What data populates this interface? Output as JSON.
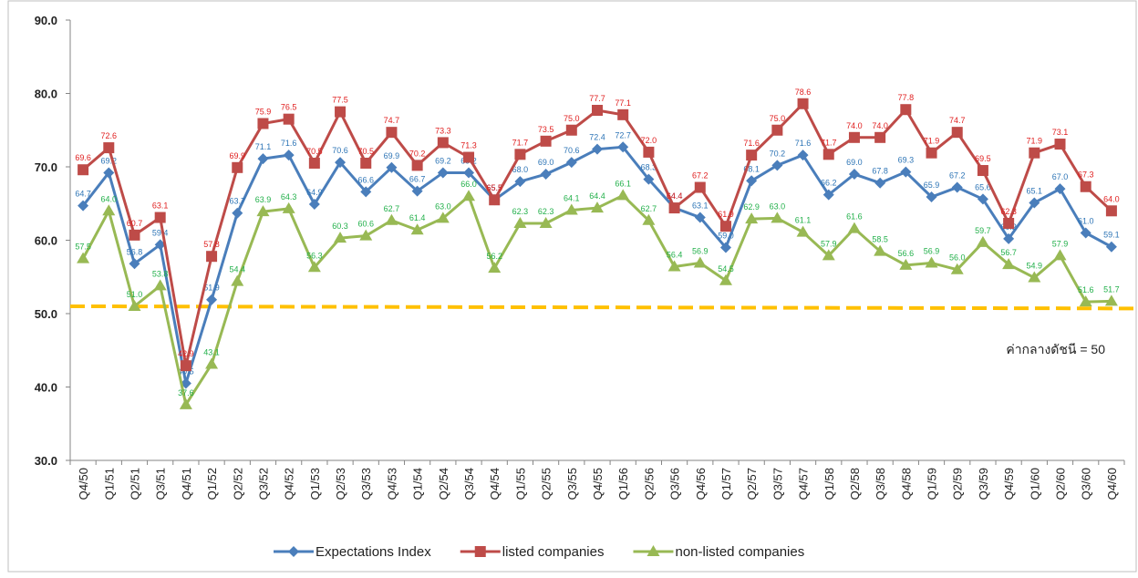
{
  "chart_data": {
    "type": "line",
    "categories": [
      "Q4/50",
      "Q1/51",
      "Q2/51",
      "Q3/51",
      "Q4/51",
      "Q1/52",
      "Q2/52",
      "Q3/52",
      "Q4/52",
      "Q1/53",
      "Q2/53",
      "Q3/53",
      "Q4/53",
      "Q1/54",
      "Q2/54",
      "Q3/54",
      "Q4/54",
      "Q1/55",
      "Q2/55",
      "Q3/55",
      "Q4/55",
      "Q1/56",
      "Q2/56",
      "Q3/56",
      "Q4/56",
      "Q1/57",
      "Q2/57",
      "Q3/57",
      "Q4/57",
      "Q1/58",
      "Q2/58",
      "Q3/58",
      "Q4/58",
      "Q1/59",
      "Q2/59",
      "Q3/59",
      "Q4/59",
      "Q1/60",
      "Q2/60",
      "Q3/60",
      "Q4/60"
    ],
    "series": [
      {
        "name": "Expectations Index",
        "color": "#4a7ebb",
        "label_color": "#2e75b6",
        "marker": "diamond",
        "values": [
          64.7,
          69.2,
          56.8,
          59.4,
          40.5,
          51.9,
          63.7,
          71.1,
          71.6,
          64.9,
          70.6,
          66.6,
          69.9,
          66.7,
          69.2,
          69.2,
          65.5,
          68.0,
          69.0,
          70.6,
          72.4,
          72.7,
          68.3,
          64.4,
          63.1,
          59.0,
          68.1,
          70.2,
          71.6,
          66.2,
          69.0,
          67.8,
          69.3,
          65.9,
          67.2,
          65.6,
          60.2,
          65.1,
          67.0,
          61.0,
          59.1
        ],
        "value_labels": [
          "64.7",
          "69.2",
          "56.8",
          "59.4",
          "40.5",
          "51.9",
          "63.7",
          "71.1",
          "71.6",
          "64.9",
          "70.6",
          "66.6",
          "69.9",
          "66.7",
          "69.2",
          "69.2",
          "65.5",
          "68.0",
          "69.0",
          "70.6",
          "72.4",
          "72.7",
          "68.3",
          "64.4",
          "63.1",
          "59.0",
          "68.1",
          "70.2",
          "71.6",
          "66.2",
          "69.0",
          "67.8",
          "69.3",
          "65.9",
          "67.2",
          "65.6",
          "60.2",
          "65.1",
          "67.0",
          "61.0",
          "59.1"
        ]
      },
      {
        "name": "listed companies",
        "color": "#be4b48",
        "label_color": "#e02020",
        "marker": "square",
        "values": [
          69.6,
          72.6,
          60.7,
          63.1,
          42.9,
          57.8,
          69.9,
          75.9,
          76.5,
          70.5,
          77.5,
          70.5,
          74.7,
          70.2,
          73.3,
          71.3,
          65.5,
          71.7,
          73.5,
          75.0,
          77.7,
          77.1,
          72.0,
          64.4,
          67.2,
          61.9,
          71.6,
          75.0,
          78.6,
          71.7,
          74.0,
          74.0,
          77.8,
          71.9,
          74.7,
          69.5,
          62.3,
          71.9,
          73.1,
          67.3,
          64.0
        ],
        "value_labels": [
          "69.6",
          "72.6",
          "60.7",
          "63.1",
          "42.9",
          "57.8",
          "69.9",
          "75.9",
          "76.5",
          "70.5",
          "77.5",
          "70.5",
          "74.7",
          "70.2",
          "73.3",
          "71.3",
          "65.5",
          "71.7",
          "73.5",
          "75.0",
          "77.7",
          "77.1",
          "72.0",
          "64.4",
          "67.2",
          "61.9",
          "71.6",
          "75.0",
          "78.6",
          "71.7",
          "74.0",
          "74.0",
          "77.8",
          "71.9",
          "74.7",
          "69.5",
          "62.3",
          "71.9",
          "73.1",
          "67.3",
          "64.0"
        ]
      },
      {
        "name": "non-listed companies",
        "color": "#98b954",
        "label_color": "#22b04a",
        "marker": "triangle",
        "values": [
          57.5,
          64.0,
          51.0,
          53.8,
          37.6,
          43.1,
          54.4,
          63.9,
          64.3,
          56.3,
          60.3,
          60.6,
          62.7,
          61.4,
          63.0,
          66.0,
          56.2,
          62.3,
          62.3,
          64.1,
          64.4,
          66.1,
          62.7,
          56.4,
          56.9,
          54.5,
          62.9,
          63.0,
          61.1,
          57.9,
          61.6,
          58.5,
          56.6,
          56.9,
          56.0,
          59.7,
          56.7,
          54.9,
          57.9,
          51.6,
          51.7
        ],
        "value_labels": [
          "57.5",
          "64.0",
          "51.0",
          "53.8",
          "37.6",
          "43.1",
          "54.4",
          "63.9",
          "64.3",
          "56.3",
          "60.3",
          "60.6",
          "62.7",
          "61.4",
          "63.0",
          "66.0",
          "56.2",
          "62.3",
          "62.3",
          "64.1",
          "64.4",
          "66.1",
          "62.7",
          "56.4",
          "56.9",
          "54.5",
          "62.9",
          "63.0",
          "61.1",
          "57.9",
          "61.6",
          "58.5",
          "56.6",
          "56.9",
          "56.0",
          "59.7",
          "56.7",
          "54.9",
          "57.9",
          "51.6",
          "51.7"
        ]
      }
    ],
    "reference_line": {
      "values": [
        51.0,
        50.7
      ],
      "color": "#ffc000",
      "label": "ค่ากลางดัชนี = 50"
    },
    "ylim": [
      30,
      90
    ],
    "yticks": [
      {
        "value": 30,
        "label": "30.0"
      },
      {
        "value": 40,
        "label": "40.0"
      },
      {
        "value": 50,
        "label": "50.0"
      },
      {
        "value": 60,
        "label": "60.0"
      },
      {
        "value": 70,
        "label": "70.0"
      },
      {
        "value": 80,
        "label": "80.0"
      },
      {
        "value": 90,
        "label": "90.0"
      }
    ],
    "grid": false,
    "legend": "bottom"
  }
}
